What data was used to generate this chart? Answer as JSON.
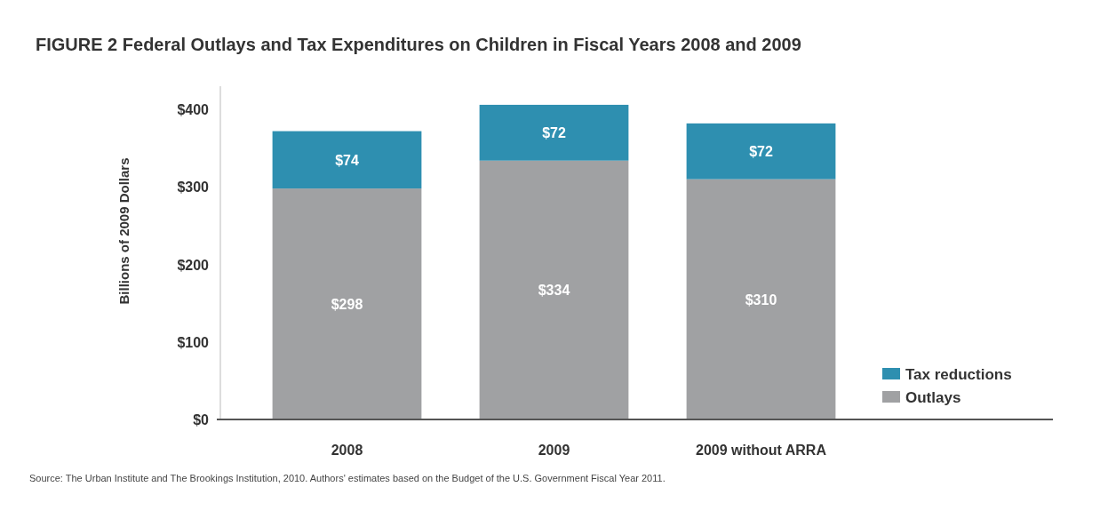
{
  "chart_data": {
    "type": "bar",
    "title": "FIGURE 2 Federal Outlays and Tax Expenditures on Children in Fiscal Years 2008 and 2009",
    "ylabel": "Billions of 2009 Dollars",
    "categories": [
      "2008",
      "2009",
      "2009 without ARRA"
    ],
    "stacked": true,
    "series": [
      {
        "name": "Outlays",
        "color": "#a0a1a3",
        "values": [
          298,
          334,
          310
        ],
        "value_labels": [
          "$298",
          "$334",
          "$310"
        ]
      },
      {
        "name": "Tax reductions",
        "color": "#2e8fb0",
        "values": [
          74,
          72,
          72
        ],
        "value_labels": [
          "$74",
          "$72",
          "$72"
        ]
      }
    ],
    "ylim": [
      0,
      430
    ],
    "yticks": [
      {
        "value": 0,
        "label": "$0"
      },
      {
        "value": 100,
        "label": "$100"
      },
      {
        "value": 200,
        "label": "$200"
      },
      {
        "value": 300,
        "label": "$300"
      },
      {
        "value": 400,
        "label": "$400"
      }
    ],
    "legend": "bottom right",
    "grid": false,
    "annotations": [
      "Source: The Urban Institute and The Brookings Institution, 2010. Authors' estimates based on the Budget of the U.S. Government Fiscal Year 2011."
    ]
  }
}
